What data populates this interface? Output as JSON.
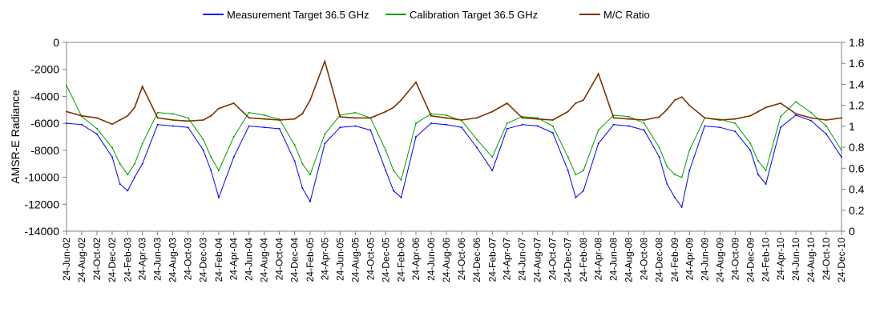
{
  "chart_data": {
    "type": "line",
    "title": "",
    "ylabel": "AMSR-E Radiance",
    "y2label": "",
    "ylim": [
      -14000,
      0
    ],
    "y2lim": [
      0,
      1.8
    ],
    "yticks": [
      0,
      -2000,
      -4000,
      -6000,
      -8000,
      -10000,
      -12000,
      -14000
    ],
    "y2ticks": [
      1.8,
      1.6,
      1.4,
      1.2,
      1,
      0.8,
      0.6,
      0.4,
      0.2,
      0
    ],
    "y_tick_labels": [
      "0",
      "-2000",
      "-4000",
      "-6000",
      "-8000",
      "-10000",
      "-12000",
      "-14000"
    ],
    "y2_tick_labels": [
      "1.8",
      "1.6",
      "1.4",
      "1.2",
      "1",
      "0.8",
      "0.6",
      "0.4",
      "0.2",
      "0"
    ],
    "x_tick_labels": [
      "24-Jun-02",
      "24-Aug-02",
      "24-Oct-02",
      "24-Dec-02",
      "24-Feb-03",
      "24-Apr-03",
      "24-Jun-03",
      "24-Aug-03",
      "24-Oct-03",
      "24-Dec-03",
      "24-Feb-04",
      "24-Apr-04",
      "24-Jun-04",
      "24-Aug-04",
      "24-Oct-04",
      "24-Dec-04",
      "24-Feb-05",
      "24-Apr-05",
      "24-Jun-05",
      "24-Aug-05",
      "24-Oct-05",
      "24-Dec-05",
      "24-Feb-06",
      "24-Apr-06",
      "24-Jun-06",
      "24-Aug-06",
      "24-Oct-06",
      "24-Dec-06",
      "24-Feb-07",
      "24-Apr-07",
      "24-Jun-07",
      "24-Aug-07",
      "24-Oct-07",
      "24-Dec-07",
      "24-Feb-08",
      "24-Apr-08",
      "24-Jun-08",
      "24-Aug-08",
      "24-Oct-08",
      "24-Dec-08",
      "24-Feb-09",
      "24-Apr-09",
      "24-Jun-09",
      "24-Aug-09",
      "24-Oct-09",
      "24-Dec-09",
      "24-Feb-10",
      "24-Apr-10",
      "24-Jun-10",
      "24-Aug-10",
      "24-Oct-10",
      "24-Dec-10"
    ],
    "legend_position": "top",
    "grid": false,
    "series": [
      {
        "name": "Measurement Target 36.5 GHz",
        "axis": "left",
        "color": "#0000ff",
        "x": [
          "24-Jun-02",
          "24-Aug-02",
          "24-Oct-02",
          "24-Dec-02",
          "24-Jan-03",
          "24-Feb-03",
          "24-Mar-03",
          "24-Apr-03",
          "24-Jun-03",
          "24-Aug-03",
          "24-Oct-03",
          "24-Dec-03",
          "24-Jan-04",
          "24-Feb-04",
          "24-Apr-04",
          "24-Jun-04",
          "24-Aug-04",
          "24-Oct-04",
          "24-Dec-04",
          "24-Jan-05",
          "24-Feb-05",
          "24-Apr-05",
          "24-Jun-05",
          "24-Aug-05",
          "24-Oct-05",
          "24-Dec-05",
          "24-Jan-06",
          "24-Feb-06",
          "24-Apr-06",
          "24-Jun-06",
          "24-Aug-06",
          "24-Oct-06",
          "24-Dec-06",
          "24-Feb-07",
          "24-Apr-07",
          "24-Jun-07",
          "24-Aug-07",
          "24-Oct-07",
          "24-Dec-07",
          "24-Jan-08",
          "24-Feb-08",
          "24-Apr-08",
          "24-Jun-08",
          "24-Aug-08",
          "24-Oct-08",
          "24-Dec-08",
          "24-Jan-09",
          "24-Feb-09",
          "24-Mar-09",
          "24-Apr-09",
          "24-Jun-09",
          "24-Aug-09",
          "24-Oct-09",
          "24-Dec-09",
          "24-Jan-10",
          "24-Feb-10",
          "24-Apr-10",
          "24-Jun-10",
          "24-Aug-10",
          "24-Oct-10",
          "24-Dec-10"
        ],
        "values": [
          -6000,
          -6100,
          -6800,
          -8500,
          -10500,
          -11000,
          -10000,
          -9000,
          -6100,
          -6200,
          -6300,
          -8000,
          -9500,
          -11500,
          -8500,
          -6200,
          -6300,
          -6400,
          -8800,
          -10800,
          -11800,
          -7500,
          -6300,
          -6200,
          -6500,
          -9500,
          -11000,
          -11500,
          -7000,
          -6000,
          -6100,
          -6300,
          -7800,
          -9500,
          -6400,
          -6100,
          -6200,
          -6700,
          -9500,
          -11500,
          -11000,
          -7500,
          -6100,
          -6200,
          -6500,
          -8500,
          -10500,
          -11500,
          -12200,
          -9500,
          -6200,
          -6300,
          -6600,
          -8000,
          -9800,
          -10500,
          -6300,
          -5400,
          -5800,
          -6800,
          -8500
        ]
      },
      {
        "name": "Calibration Target 36.5 GHz",
        "axis": "left",
        "color": "#00a000",
        "x": [
          "24-Jun-02",
          "24-Aug-02",
          "24-Oct-02",
          "24-Dec-02",
          "24-Jan-03",
          "24-Feb-03",
          "24-Mar-03",
          "24-Apr-03",
          "24-Jun-03",
          "24-Aug-03",
          "24-Oct-03",
          "24-Dec-03",
          "24-Jan-04",
          "24-Feb-04",
          "24-Apr-04",
          "24-Jun-04",
          "24-Aug-04",
          "24-Oct-04",
          "24-Dec-04",
          "24-Jan-05",
          "24-Feb-05",
          "24-Apr-05",
          "24-Jun-05",
          "24-Aug-05",
          "24-Oct-05",
          "24-Dec-05",
          "24-Jan-06",
          "24-Feb-06",
          "24-Apr-06",
          "24-Jun-06",
          "24-Aug-06",
          "24-Oct-06",
          "24-Dec-06",
          "24-Feb-07",
          "24-Apr-07",
          "24-Jun-07",
          "24-Aug-07",
          "24-Oct-07",
          "24-Dec-07",
          "24-Jan-08",
          "24-Feb-08",
          "24-Apr-08",
          "24-Jun-08",
          "24-Aug-08",
          "24-Oct-08",
          "24-Dec-08",
          "24-Jan-09",
          "24-Feb-09",
          "24-Mar-09",
          "24-Apr-09",
          "24-Jun-09",
          "24-Aug-09",
          "24-Oct-09",
          "24-Dec-09",
          "24-Jan-10",
          "24-Feb-10",
          "24-Apr-10",
          "24-Jun-10",
          "24-Aug-10",
          "24-Oct-10",
          "24-Dec-10"
        ],
        "values": [
          -3200,
          -5500,
          -6400,
          -7800,
          -9000,
          -9800,
          -9000,
          -7500,
          -5200,
          -5300,
          -5600,
          -7200,
          -8500,
          -9500,
          -7000,
          -5200,
          -5400,
          -5700,
          -7600,
          -9000,
          -9800,
          -6800,
          -5400,
          -5200,
          -5600,
          -8000,
          -9500,
          -10200,
          -6000,
          -5300,
          -5400,
          -5800,
          -7200,
          -8500,
          -6000,
          -5500,
          -5600,
          -6200,
          -8500,
          -9800,
          -9500,
          -6500,
          -5400,
          -5500,
          -6000,
          -7800,
          -9200,
          -9800,
          -10000,
          -8000,
          -5600,
          -5700,
          -6000,
          -7500,
          -8800,
          -9500,
          -5500,
          -4400,
          -5200,
          -6200,
          -8000
        ]
      },
      {
        "name": "M/C Ratio",
        "axis": "right",
        "color": "#7b3300",
        "x": [
          "24-Jun-02",
          "24-Aug-02",
          "24-Oct-02",
          "24-Dec-02",
          "24-Jan-03",
          "24-Feb-03",
          "24-Mar-03",
          "24-Apr-03",
          "24-Jun-03",
          "24-Aug-03",
          "24-Oct-03",
          "24-Dec-03",
          "24-Jan-04",
          "24-Feb-04",
          "24-Apr-04",
          "24-Jun-04",
          "24-Aug-04",
          "24-Oct-04",
          "24-Dec-04",
          "24-Jan-05",
          "24-Feb-05",
          "24-Apr-05",
          "24-Jun-05",
          "24-Aug-05",
          "24-Oct-05",
          "24-Dec-05",
          "24-Jan-06",
          "24-Feb-06",
          "24-Apr-06",
          "24-Jun-06",
          "24-Aug-06",
          "24-Oct-06",
          "24-Dec-06",
          "24-Feb-07",
          "24-Apr-07",
          "24-Jun-07",
          "24-Aug-07",
          "24-Oct-07",
          "24-Dec-07",
          "24-Jan-08",
          "24-Feb-08",
          "24-Apr-08",
          "24-Jun-08",
          "24-Aug-08",
          "24-Oct-08",
          "24-Dec-08",
          "24-Jan-09",
          "24-Feb-09",
          "24-Mar-09",
          "24-Apr-09",
          "24-Jun-09",
          "24-Aug-09",
          "24-Oct-09",
          "24-Dec-09",
          "24-Jan-10",
          "24-Feb-10",
          "24-Apr-10",
          "24-Jun-10",
          "24-Aug-10",
          "24-Oct-10",
          "24-Dec-10"
        ],
        "values": [
          1.14,
          1.1,
          1.08,
          1.02,
          1.06,
          1.1,
          1.18,
          1.38,
          1.08,
          1.06,
          1.05,
          1.06,
          1.1,
          1.17,
          1.22,
          1.08,
          1.07,
          1.06,
          1.07,
          1.12,
          1.25,
          1.62,
          1.09,
          1.08,
          1.08,
          1.14,
          1.18,
          1.25,
          1.42,
          1.1,
          1.08,
          1.06,
          1.08,
          1.14,
          1.22,
          1.08,
          1.07,
          1.06,
          1.14,
          1.22,
          1.25,
          1.5,
          1.08,
          1.07,
          1.06,
          1.09,
          1.16,
          1.25,
          1.28,
          1.2,
          1.08,
          1.06,
          1.07,
          1.1,
          1.14,
          1.18,
          1.22,
          1.12,
          1.08,
          1.06,
          1.08
        ]
      }
    ]
  }
}
